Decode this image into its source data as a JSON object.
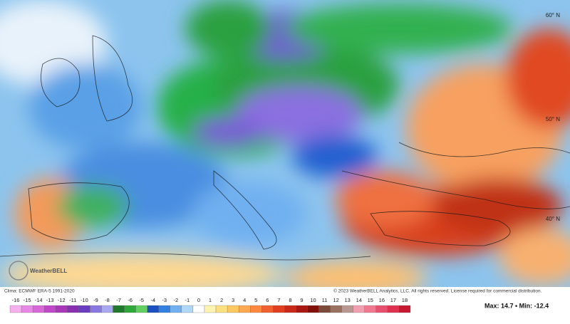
{
  "map": {
    "lat_labels": [
      "60° N",
      "50° N",
      "40° N"
    ],
    "logo": "WeatherBELL"
  },
  "footer": {
    "clima": "Clima: ECMWF ERA-5 1991-2020",
    "copyright": "© 2023 WeatherBELL Analytics, LLC. All rights reserved. License required for commercial distribution.",
    "max_min": "Max: 14.7 • Min: -12.4"
  },
  "legend": {
    "ticks": [
      -16,
      -15,
      -14,
      -13,
      -12,
      -11,
      -10,
      -9,
      -8,
      -7,
      -6,
      -5,
      -4,
      -3,
      -2,
      -1,
      0,
      1,
      2,
      3,
      4,
      5,
      6,
      7,
      8,
      9,
      10,
      11,
      12,
      13,
      14,
      15,
      16,
      17,
      18
    ],
    "colors": [
      "#f5b0f0",
      "#e888e4",
      "#d868d8",
      "#c048c8",
      "#a838b8",
      "#8830b0",
      "#6a3cc0",
      "#8a78e0",
      "#a8a8f0",
      "#1f7a2a",
      "#2fa83a",
      "#60d060",
      "#1a50c0",
      "#3080e0",
      "#70b0f0",
      "#b0d8f8",
      "#ffffff",
      "#fff4b0",
      "#ffe080",
      "#ffc860",
      "#ffa850",
      "#ff8840",
      "#f06030",
      "#e04020",
      "#c82818",
      "#a81810",
      "#801008",
      "#7a4a3a",
      "#9a7060",
      "#b89890",
      "#f0a0b0",
      "#f07890",
      "#e85070",
      "#e03050",
      "#c81830"
    ]
  }
}
